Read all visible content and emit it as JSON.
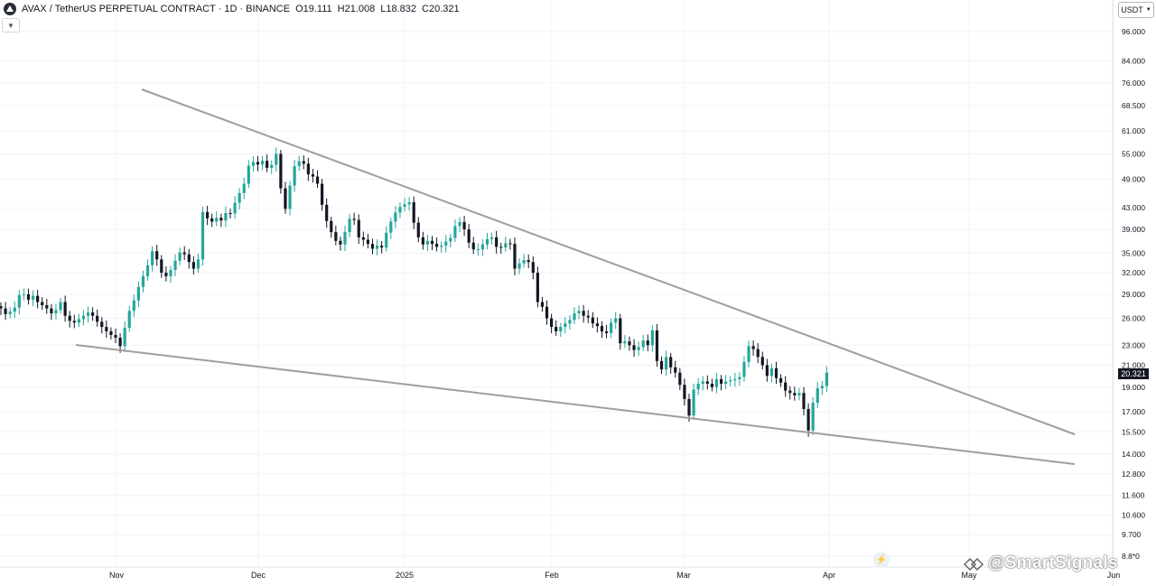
{
  "header": {
    "symbol": "AVAX / TetherUS PERPETUAL CONTRACT · 1D · BINANCE",
    "open_label": "O",
    "open": "19.111",
    "high_label": "H",
    "high": "21.008",
    "low_label": "L",
    "low": "18.832",
    "close_label": "C",
    "close": "20.321"
  },
  "currency": "USDT",
  "last_price": "20.321",
  "watermark": "@SmartSignals",
  "colors": {
    "up": "#26a69a",
    "down": "#131722",
    "trendline": "#9e9e9e",
    "grid": "#f0f3fa"
  },
  "icons": {
    "collapse": "chevron-down-icon",
    "currency": "chevron-down-icon",
    "bolt": "lightning-icon",
    "logo": "exchange-logo-icon"
  },
  "chart_data": {
    "type": "candlestick",
    "yscale": "log",
    "ylim": [
      8.8,
      100
    ],
    "y_ticks": [
      "96.000",
      "84.000",
      "76.000",
      "68.500",
      "61.000",
      "55.000",
      "49.000",
      "43.000",
      "39.000",
      "35.000",
      "32.000",
      "29.000",
      "26.000",
      "23.000",
      "21.000",
      "19.000",
      "17.000",
      "15.500",
      "14.000",
      "12.800",
      "11.600",
      "10.600",
      "9.700",
      "8.8*0"
    ],
    "x_ticks": [
      "Nov",
      "Dec",
      "2025",
      "Feb",
      "Mar",
      "Apr",
      "May",
      "Jun"
    ],
    "candles_close": [
      27.2,
      26.5,
      26.8,
      27.3,
      28.9,
      29.0,
      28.3,
      28.8,
      28.0,
      27.6,
      27.2,
      26.6,
      27.0,
      28.0,
      26.3,
      25.7,
      25.5,
      25.9,
      26.3,
      26.7,
      26.3,
      25.6,
      25.0,
      24.5,
      24.1,
      23.8,
      22.9,
      24.9,
      26.9,
      28.2,
      30.0,
      31.5,
      33.1,
      35.3,
      34.0,
      32.0,
      31.5,
      32.4,
      33.8,
      35.1,
      34.8,
      33.6,
      32.6,
      34.0,
      42.2,
      41.0,
      40.4,
      41.1,
      40.6,
      42.0,
      41.9,
      44.0,
      46.0,
      48.0,
      52.1,
      53.0,
      52.4,
      53.3,
      51.6,
      52.3,
      55.0,
      47.0,
      42.8,
      47.6,
      52.0,
      53.2,
      52.6,
      50.1,
      49.6,
      48.0,
      43.6,
      40.5,
      38.5,
      37.0,
      36.4,
      38.5,
      40.9,
      40.7,
      37.6,
      37.2,
      36.5,
      35.7,
      36.2,
      35.9,
      38.4,
      40.4,
      42.1,
      43.2,
      43.7,
      44.1,
      40.2,
      37.6,
      36.4,
      37.0,
      36.5,
      36.0,
      36.2,
      36.9,
      37.5,
      39.6,
      40.3,
      39.0,
      36.7,
      35.6,
      35.6,
      36.4,
      37.3,
      37.6,
      36.0,
      35.9,
      36.6,
      36.5,
      32.6,
      33.4,
      33.9,
      33.6,
      32.0,
      28.0,
      27.4,
      26.0,
      25.0,
      24.5,
      25.0,
      25.4,
      25.8,
      26.6,
      26.9,
      26.3,
      26.1,
      25.4,
      25.1,
      24.5,
      24.3,
      25.5,
      26.0,
      23.2,
      23.4,
      23.0,
      22.5,
      22.8,
      23.5,
      23.0,
      24.6,
      21.4,
      20.6,
      21.8,
      20.8,
      20.3,
      19.2,
      18.0,
      16.7,
      18.8,
      19.3,
      19.5,
      19.3,
      19.0,
      19.7,
      19.3,
      19.5,
      19.6,
      19.7,
      19.9,
      21.3,
      22.9,
      22.6,
      21.8,
      21.0,
      20.0,
      20.7,
      19.8,
      19.4,
      18.7,
      18.5,
      18.3,
      18.5,
      17.2,
      15.6,
      17.7,
      18.9,
      19.1,
      20.3
    ]
  }
}
